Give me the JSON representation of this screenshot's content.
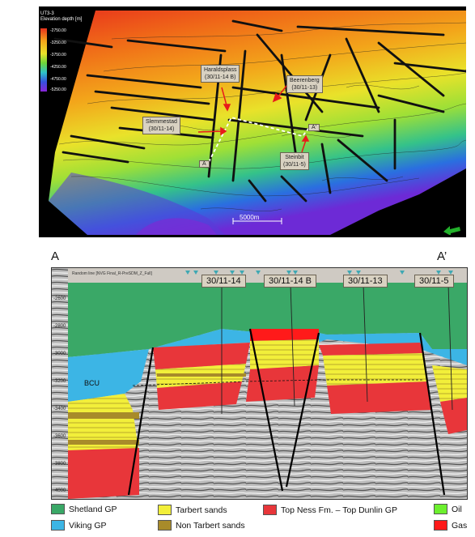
{
  "map": {
    "colorbar_title_1": "UT3-3",
    "colorbar_title_2": "Elevation depth [m]",
    "colorbar_labels": [
      "-2750.00",
      "-3250.00",
      "-3750.00",
      "-4250.00",
      "-4750.00",
      "-5250.00"
    ],
    "wells": {
      "haraldsplass": {
        "name": "Haraldsplass",
        "id": "(30/11-14 B)"
      },
      "beerenberg": {
        "name": "Beerenberg",
        "id": "(30/11-13)"
      },
      "slemmestad": {
        "name": "Slemmestad",
        "id": "(30/11-14)"
      },
      "steinbit": {
        "name": "Steinbit",
        "id": "(30/11-5)"
      }
    },
    "point_a": "A",
    "point_a_prime": "A'",
    "scale_label": "5000m",
    "north_arrow": "green-arrow-icon"
  },
  "section": {
    "end_left": "A",
    "end_right": "A’",
    "ribbon_text": "Random line [NVG Final_R-PreSDM_Z_Full]",
    "wells": [
      "30/11-14",
      "30/11-14 B",
      "30/11-13",
      "30/11-5"
    ],
    "depth_ticks": [
      "-2600",
      "-2800",
      "-3000",
      "-3200",
      "-3400",
      "-3600",
      "-3800",
      "-4000"
    ],
    "bcu_label": "BCU"
  },
  "legend": {
    "items": [
      {
        "label": "Shetland GP",
        "color": "#3aa867"
      },
      {
        "label": "Viking GP",
        "color": "#3cb5e5"
      },
      {
        "label": "Tarbert sands",
        "color": "#f2ef3a"
      },
      {
        "label": "Non Tarbert sands",
        "color": "#a88b2a"
      },
      {
        "label": "Top Ness Fm. – Top Dunlin GP",
        "color": "#e8363a"
      },
      {
        "label": "Oil",
        "color": "#6cf02e"
      },
      {
        "label": "Gas",
        "color": "#ff1a1a"
      }
    ]
  }
}
